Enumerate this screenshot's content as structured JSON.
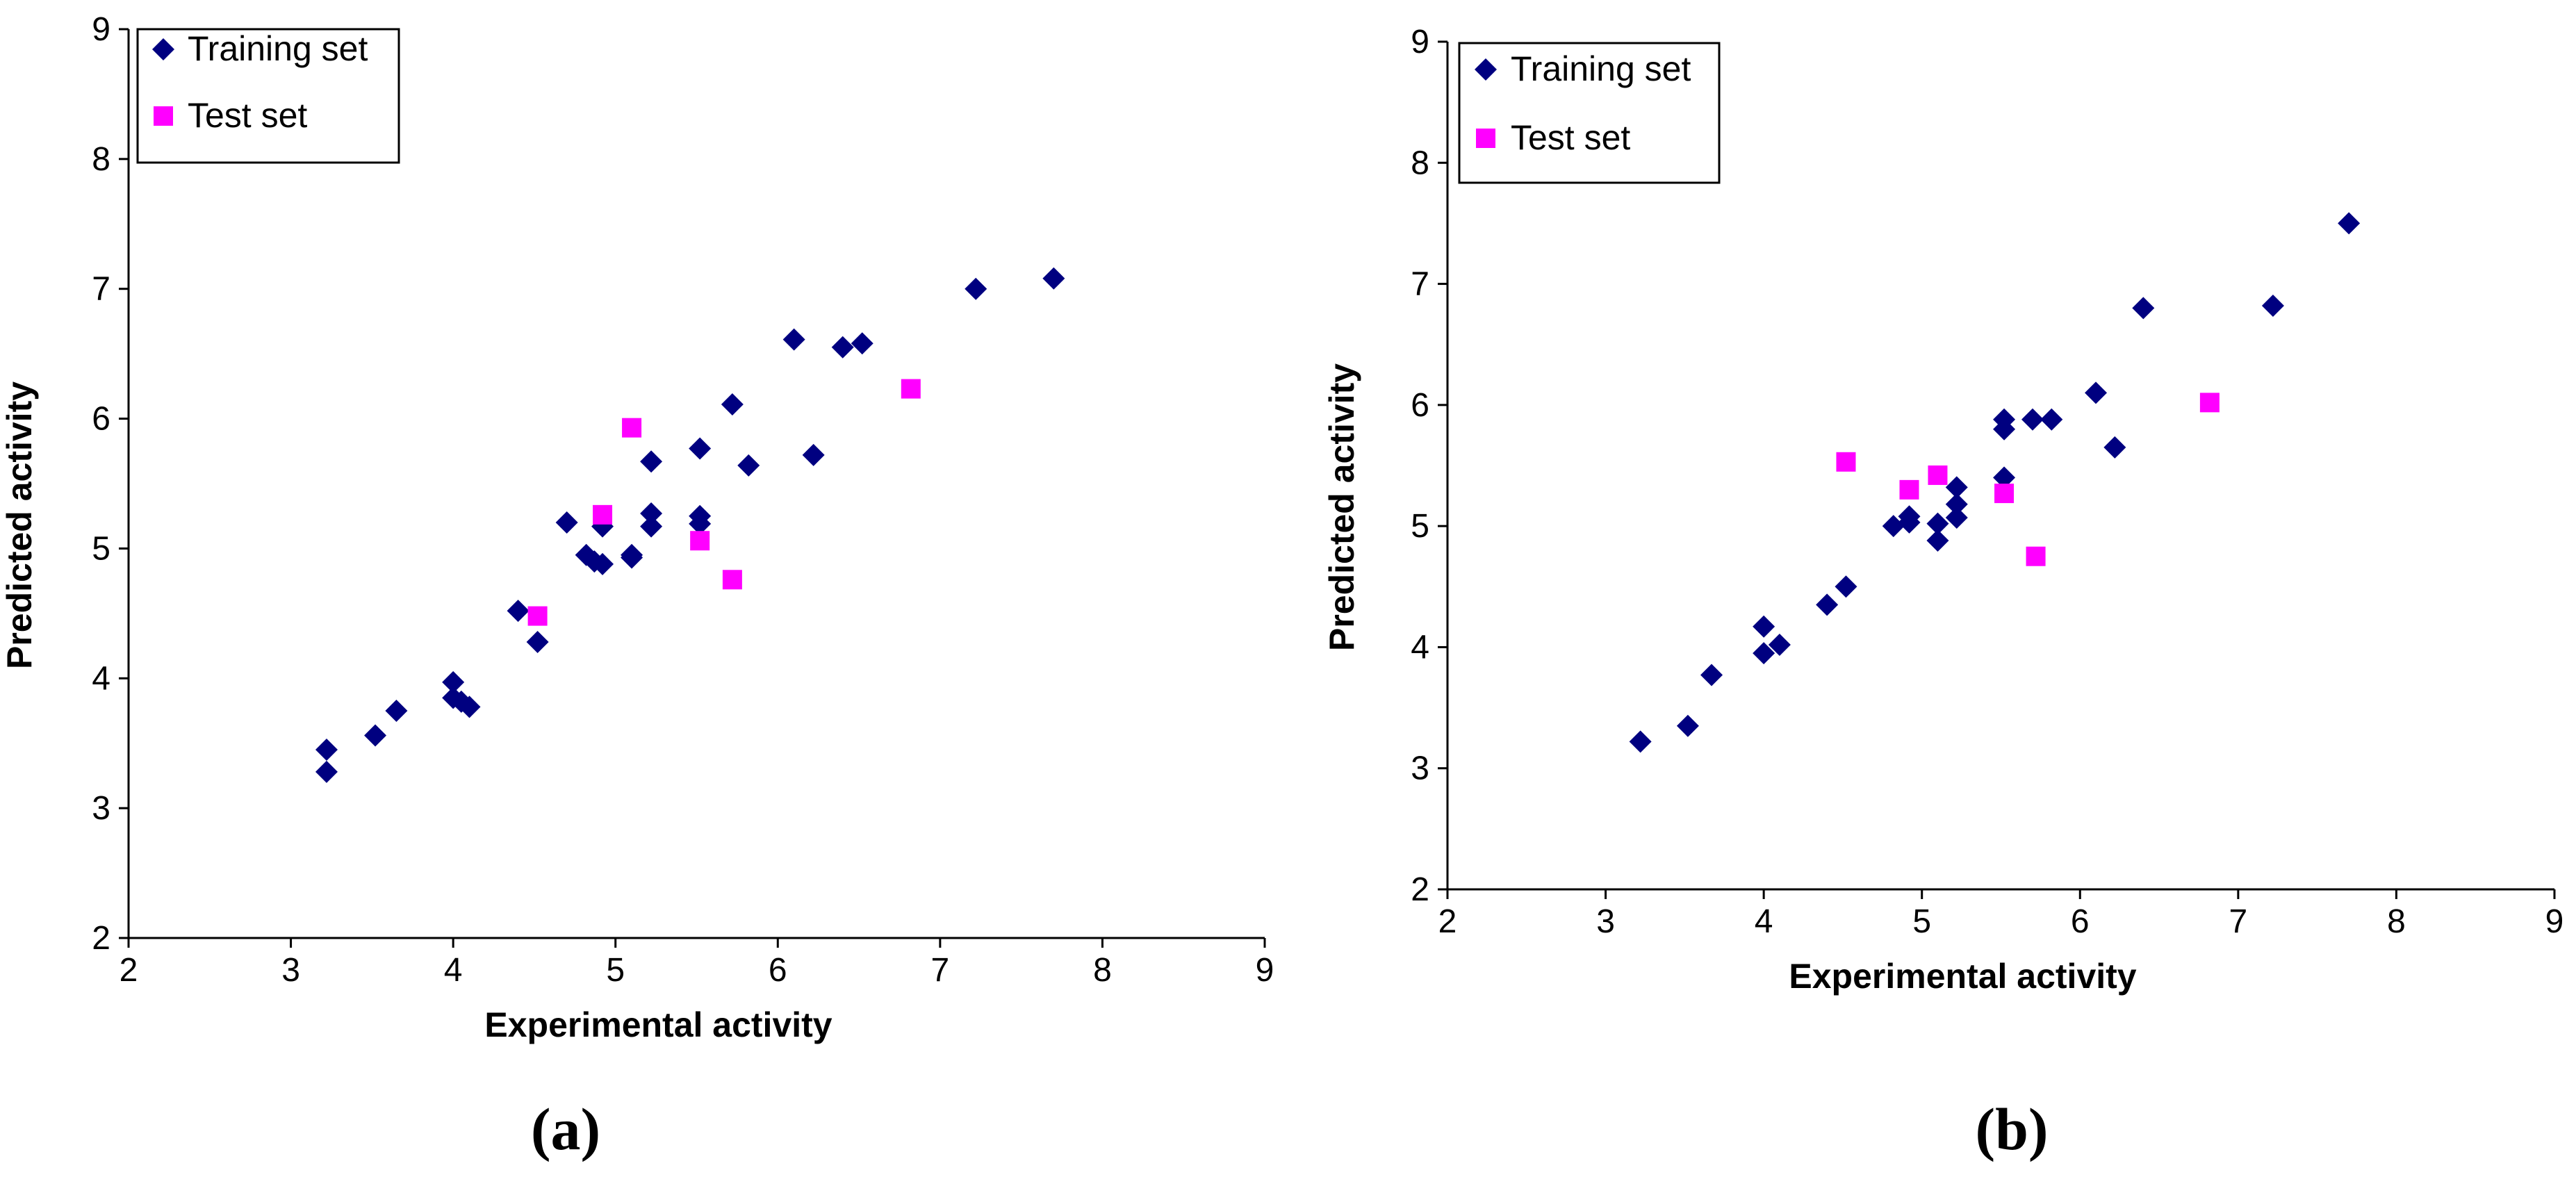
{
  "chart_data": [
    {
      "type": "scatter",
      "panel": "(a)",
      "xlabel": "Experimental activity",
      "ylabel": "Predicted activity",
      "xlim": [
        2,
        9
      ],
      "ylim": [
        2,
        9
      ],
      "xticks": [
        "2",
        "3",
        "4",
        "5",
        "6",
        "7",
        "8",
        "9"
      ],
      "yticks": [
        "2",
        "3",
        "4",
        "5",
        "6",
        "7",
        "8",
        "9"
      ],
      "legend": "top-left",
      "colors": {
        "training": "#000080",
        "test": "#ff00ff"
      },
      "series": [
        {
          "name": "Training set",
          "marker": "diamond",
          "points": [
            [
              3.22,
              3.28
            ],
            [
              3.22,
              3.45
            ],
            [
              3.52,
              3.56
            ],
            [
              3.65,
              3.75
            ],
            [
              4.0,
              3.97
            ],
            [
              4.0,
              3.85
            ],
            [
              4.05,
              3.82
            ],
            [
              4.1,
              3.78
            ],
            [
              4.4,
              4.52
            ],
            [
              4.52,
              4.28
            ],
            [
              4.7,
              5.2
            ],
            [
              4.82,
              4.95
            ],
            [
              4.87,
              4.9
            ],
            [
              4.92,
              4.88
            ],
            [
              4.92,
              5.17
            ],
            [
              5.1,
              4.93
            ],
            [
              5.1,
              4.95
            ],
            [
              5.22,
              5.27
            ],
            [
              5.22,
              5.17
            ],
            [
              5.22,
              5.67
            ],
            [
              5.52,
              5.25
            ],
            [
              5.52,
              5.19
            ],
            [
              5.52,
              5.77
            ],
            [
              5.72,
              6.11
            ],
            [
              5.82,
              5.64
            ],
            [
              6.1,
              6.61
            ],
            [
              6.22,
              5.72
            ],
            [
              6.4,
              6.55
            ],
            [
              6.52,
              6.58
            ],
            [
              7.22,
              7.0
            ],
            [
              7.7,
              7.08
            ]
          ]
        },
        {
          "name": "Test set",
          "marker": "square",
          "points": [
            [
              4.52,
              4.48
            ],
            [
              4.92,
              5.26
            ],
            [
              5.1,
              5.93
            ],
            [
              5.52,
              5.06
            ],
            [
              5.72,
              4.76
            ],
            [
              6.82,
              6.23
            ]
          ]
        }
      ]
    },
    {
      "type": "scatter",
      "panel": "(b)",
      "xlabel": "Experimental activity",
      "ylabel": "Predicted activity",
      "xlim": [
        2,
        9
      ],
      "ylim": [
        2,
        9
      ],
      "xticks": [
        "2",
        "3",
        "4",
        "5",
        "6",
        "7",
        "8",
        "9"
      ],
      "yticks": [
        "2",
        "3",
        "4",
        "5",
        "6",
        "7",
        "8",
        "9"
      ],
      "legend": "top-left",
      "colors": {
        "training": "#000080",
        "test": "#ff00ff"
      },
      "series": [
        {
          "name": "Training set",
          "marker": "diamond",
          "points": [
            [
              3.22,
              3.22
            ],
            [
              3.52,
              3.35
            ],
            [
              3.67,
              3.77
            ],
            [
              4.0,
              4.17
            ],
            [
              4.0,
              3.95
            ],
            [
              4.1,
              4.02
            ],
            [
              4.4,
              4.35
            ],
            [
              4.52,
              4.5
            ],
            [
              4.82,
              5.0
            ],
            [
              4.92,
              5.08
            ],
            [
              4.92,
              5.03
            ],
            [
              5.1,
              4.88
            ],
            [
              5.1,
              5.02
            ],
            [
              5.22,
              5.07
            ],
            [
              5.22,
              5.18
            ],
            [
              5.22,
              5.32
            ],
            [
              5.52,
              5.4
            ],
            [
              5.52,
              5.8
            ],
            [
              5.52,
              5.88
            ],
            [
              5.7,
              5.88
            ],
            [
              5.82,
              5.88
            ],
            [
              6.1,
              6.1
            ],
            [
              6.22,
              5.65
            ],
            [
              6.4,
              6.8
            ],
            [
              7.22,
              6.82
            ],
            [
              7.7,
              7.5
            ]
          ]
        },
        {
          "name": "Test set",
          "marker": "square",
          "points": [
            [
              4.52,
              5.53
            ],
            [
              4.92,
              5.3
            ],
            [
              5.1,
              5.42
            ],
            [
              5.52,
              5.27
            ],
            [
              5.72,
              4.75
            ],
            [
              6.82,
              6.02
            ]
          ]
        }
      ]
    }
  ],
  "captions": {
    "a": "(a)",
    "b": "(b)"
  }
}
